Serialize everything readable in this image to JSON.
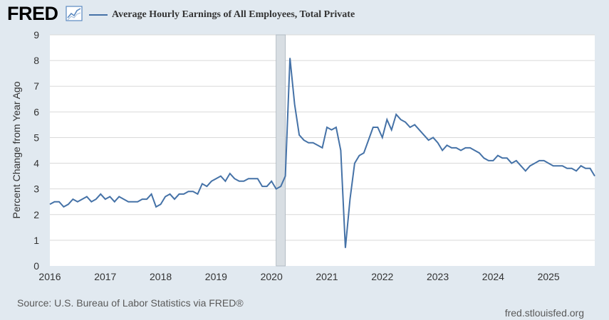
{
  "header": {
    "logo_text": "FRED",
    "logo_icon": "line-chart-icon"
  },
  "footer": {
    "source": "Source: U.S. Bureau of Labor Statistics via FRED®",
    "site": "fred.stlouisfed.org"
  },
  "colors": {
    "line": "#4572a7",
    "recession": "#d8dee3",
    "background": "#e1e9f0",
    "plot": "#ffffff",
    "grid": "#d9d9d9"
  },
  "chart_data": {
    "type": "line",
    "title": "",
    "xlabel": "",
    "ylabel": "Percent Change from Year Ago",
    "ylim": [
      0,
      9
    ],
    "yticks": [
      0,
      1,
      2,
      3,
      4,
      5,
      6,
      7,
      8,
      9
    ],
    "xlim": [
      "2016-01",
      "2025-11"
    ],
    "xticks": [
      "2016",
      "2017",
      "2018",
      "2019",
      "2020",
      "2021",
      "2022",
      "2023",
      "2024",
      "2025"
    ],
    "grid": "horizontal",
    "legend": "top-left",
    "recession": {
      "start": "2020-02",
      "end": "2020-04"
    },
    "series": [
      {
        "name": "Average Hourly Earnings of All Employees, Total Private",
        "color": "#4572a7",
        "x": [
          "2016-01",
          "2016-02",
          "2016-03",
          "2016-04",
          "2016-05",
          "2016-06",
          "2016-07",
          "2016-08",
          "2016-09",
          "2016-10",
          "2016-11",
          "2016-12",
          "2017-01",
          "2017-02",
          "2017-03",
          "2017-04",
          "2017-05",
          "2017-06",
          "2017-07",
          "2017-08",
          "2017-09",
          "2017-10",
          "2017-11",
          "2017-12",
          "2018-01",
          "2018-02",
          "2018-03",
          "2018-04",
          "2018-05",
          "2018-06",
          "2018-07",
          "2018-08",
          "2018-09",
          "2018-10",
          "2018-11",
          "2018-12",
          "2019-01",
          "2019-02",
          "2019-03",
          "2019-04",
          "2019-05",
          "2019-06",
          "2019-07",
          "2019-08",
          "2019-09",
          "2019-10",
          "2019-11",
          "2019-12",
          "2020-01",
          "2020-02",
          "2020-03",
          "2020-04",
          "2020-05",
          "2020-06",
          "2020-07",
          "2020-08",
          "2020-09",
          "2020-10",
          "2020-11",
          "2020-12",
          "2021-01",
          "2021-02",
          "2021-03",
          "2021-04",
          "2021-05",
          "2021-06",
          "2021-07",
          "2021-08",
          "2021-09",
          "2021-10",
          "2021-11",
          "2021-12",
          "2022-01",
          "2022-02",
          "2022-03",
          "2022-04",
          "2022-05",
          "2022-06",
          "2022-07",
          "2022-08",
          "2022-09",
          "2022-10",
          "2022-11",
          "2022-12",
          "2023-01",
          "2023-02",
          "2023-03",
          "2023-04",
          "2023-05",
          "2023-06",
          "2023-07",
          "2023-08",
          "2023-09",
          "2023-10",
          "2023-11",
          "2023-12",
          "2024-01",
          "2024-02",
          "2024-03",
          "2024-04",
          "2024-05",
          "2024-06",
          "2024-07",
          "2024-08",
          "2024-09",
          "2024-10",
          "2024-11",
          "2024-12",
          "2025-01",
          "2025-02",
          "2025-03",
          "2025-04",
          "2025-05",
          "2025-06",
          "2025-07",
          "2025-08",
          "2025-09",
          "2025-10",
          "2025-11"
        ],
        "values": [
          2.4,
          2.5,
          2.5,
          2.3,
          2.4,
          2.6,
          2.5,
          2.6,
          2.7,
          2.5,
          2.6,
          2.8,
          2.6,
          2.7,
          2.5,
          2.7,
          2.6,
          2.5,
          2.5,
          2.5,
          2.6,
          2.6,
          2.8,
          2.3,
          2.4,
          2.7,
          2.8,
          2.6,
          2.8,
          2.8,
          2.9,
          2.9,
          2.8,
          3.2,
          3.1,
          3.3,
          3.4,
          3.5,
          3.3,
          3.6,
          3.4,
          3.3,
          3.3,
          3.4,
          3.4,
          3.4,
          3.1,
          3.1,
          3.3,
          3.0,
          3.1,
          3.5,
          8.1,
          6.3,
          5.1,
          4.9,
          4.8,
          4.8,
          4.7,
          4.6,
          5.4,
          5.3,
          5.4,
          4.5,
          0.7,
          2.6,
          4.0,
          4.3,
          4.4,
          4.9,
          5.4,
          5.4,
          5.0,
          5.7,
          5.3,
          5.9,
          5.7,
          5.6,
          5.4,
          5.5,
          5.3,
          5.1,
          4.9,
          5.0,
          4.8,
          4.5,
          4.7,
          4.6,
          4.6,
          4.5,
          4.6,
          4.6,
          4.5,
          4.4,
          4.2,
          4.1,
          4.1,
          4.3,
          4.2,
          4.2,
          4.0,
          4.1,
          3.9,
          3.7,
          3.9,
          4.0,
          4.1,
          4.1,
          4.0,
          3.9,
          3.9,
          3.9,
          3.8,
          3.8,
          3.7,
          3.9,
          3.8,
          3.8,
          3.5
        ]
      }
    ]
  }
}
